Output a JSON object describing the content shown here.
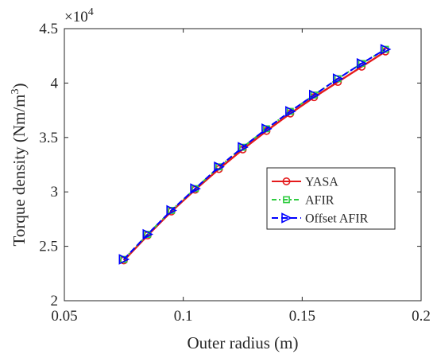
{
  "chart_data": {
    "type": "line",
    "title": "",
    "xlabel": "Outer radius (m)",
    "ylabel": "Torque density (Nm/m",
    "ylabel_superscript": "3",
    "ylabel_suffix": ")",
    "y_multiplier_base": "×10",
    "y_multiplier_exponent": "4",
    "xlim": [
      0.05,
      0.2
    ],
    "ylim": [
      2,
      4.5
    ],
    "y_scale_factor": 10000,
    "xticks": [
      0.05,
      0.1,
      0.15,
      0.2
    ],
    "xtick_labels": [
      "0.05",
      "0.1",
      "0.15",
      "0.2"
    ],
    "yticks": [
      2,
      2.5,
      3,
      3.5,
      4,
      4.5
    ],
    "ytick_labels": [
      "2",
      "2.5",
      "3",
      "3.5",
      "4",
      "4.5"
    ],
    "grid": false,
    "legend_position": "right",
    "x": [
      0.075,
      0.085,
      0.095,
      0.105,
      0.115,
      0.125,
      0.135,
      0.145,
      0.155,
      0.165,
      0.175,
      0.185
    ],
    "series": [
      {
        "name": "YASA",
        "color": "#e41a1c",
        "line_style": "solid",
        "marker": "circle",
        "values": [
          2.37,
          2.6,
          2.82,
          3.02,
          3.21,
          3.39,
          3.56,
          3.72,
          3.87,
          4.01,
          4.15,
          4.29
        ]
      },
      {
        "name": "AFIR",
        "color": "#2ecc40",
        "line_style": "dash-dot",
        "marker": "square",
        "values": [
          2.38,
          2.61,
          2.83,
          3.03,
          3.23,
          3.41,
          3.58,
          3.74,
          3.89,
          4.04,
          4.18,
          4.31
        ]
      },
      {
        "name": "Offset AFIR",
        "color": "#0000ff",
        "line_style": "dashed",
        "marker": "triangle-right",
        "values": [
          2.38,
          2.61,
          2.83,
          3.03,
          3.23,
          3.41,
          3.58,
          3.74,
          3.89,
          4.04,
          4.18,
          4.31
        ]
      }
    ]
  }
}
